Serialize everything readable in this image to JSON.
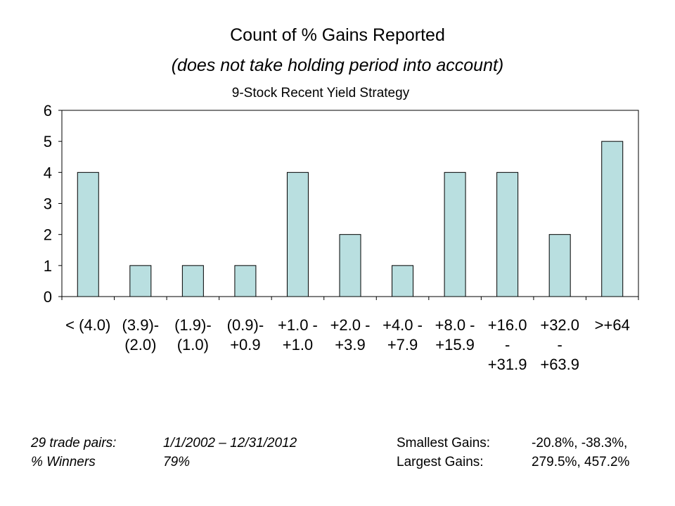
{
  "chart_data": {
    "type": "bar",
    "title": "Count of % Gains Reported",
    "subtitle": "(does not take holding period into account)",
    "series_label": "9-Stock Recent Yield Strategy",
    "categories": [
      [
        "< (4.0)"
      ],
      [
        "(3.9)-",
        "(2.0)"
      ],
      [
        "(1.9)-",
        "(1.0)"
      ],
      [
        "(0.9)-",
        "+0.9"
      ],
      [
        "+1.0 -",
        "+1.0"
      ],
      [
        "+2.0 -",
        "+3.9"
      ],
      [
        "+4.0 -",
        "+7.9"
      ],
      [
        "+8.0 -",
        "+15.9"
      ],
      [
        "+16.0",
        "-",
        "+31.9"
      ],
      [
        "+32.0",
        "-",
        "+63.9"
      ],
      [
        ">+64"
      ]
    ],
    "values": [
      4,
      1,
      1,
      1,
      4,
      2,
      1,
      4,
      4,
      2,
      5
    ],
    "yticks": [
      0,
      1,
      2,
      3,
      4,
      5,
      6
    ],
    "ylim": [
      0,
      6
    ],
    "bar_color": "#b9dfe0",
    "grid": false
  },
  "footer": {
    "trade_pairs_label": "29 trade pairs:",
    "date_range": "1/1/2002 – 12/31/2012",
    "winners_label": "% Winners",
    "winners_value": "79%",
    "smallest_label": "Smallest Gains:",
    "smallest_value": "-20.8%, -38.3%,",
    "largest_label": "Largest Gains:",
    "largest_value": "279.5%, 457.2%"
  }
}
